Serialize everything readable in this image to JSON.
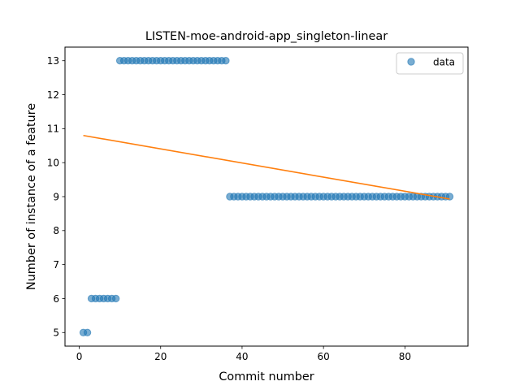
{
  "chart_data": {
    "type": "scatter",
    "title": "LISTEN-moe-android-app_singleton-linear",
    "xlabel": "Commit number",
    "ylabel": "Number of instance of a feature",
    "xlim": [
      -3.5,
      95.5
    ],
    "ylim": [
      4.6,
      13.4
    ],
    "x_ticks": [
      0,
      20,
      40,
      60,
      80
    ],
    "y_ticks": [
      5,
      6,
      7,
      8,
      9,
      10,
      11,
      12,
      13
    ],
    "legend": {
      "position": "top-right",
      "label": "data"
    },
    "series": [
      {
        "name": "data",
        "kind": "scatter",
        "color": "#1f77b4",
        "points": [
          [
            1,
            5
          ],
          [
            2,
            5
          ],
          [
            3,
            6
          ],
          [
            4,
            6
          ],
          [
            5,
            6
          ],
          [
            6,
            6
          ],
          [
            7,
            6
          ],
          [
            8,
            6
          ],
          [
            9,
            6
          ],
          [
            10,
            13
          ],
          [
            11,
            13
          ],
          [
            12,
            13
          ],
          [
            13,
            13
          ],
          [
            14,
            13
          ],
          [
            15,
            13
          ],
          [
            16,
            13
          ],
          [
            17,
            13
          ],
          [
            18,
            13
          ],
          [
            19,
            13
          ],
          [
            20,
            13
          ],
          [
            21,
            13
          ],
          [
            22,
            13
          ],
          [
            23,
            13
          ],
          [
            24,
            13
          ],
          [
            25,
            13
          ],
          [
            26,
            13
          ],
          [
            27,
            13
          ],
          [
            28,
            13
          ],
          [
            29,
            13
          ],
          [
            30,
            13
          ],
          [
            31,
            13
          ],
          [
            32,
            13
          ],
          [
            33,
            13
          ],
          [
            34,
            13
          ],
          [
            35,
            13
          ],
          [
            36,
            13
          ],
          [
            37,
            9
          ],
          [
            38,
            9
          ],
          [
            39,
            9
          ],
          [
            40,
            9
          ],
          [
            41,
            9
          ],
          [
            42,
            9
          ],
          [
            43,
            9
          ],
          [
            44,
            9
          ],
          [
            45,
            9
          ],
          [
            46,
            9
          ],
          [
            47,
            9
          ],
          [
            48,
            9
          ],
          [
            49,
            9
          ],
          [
            50,
            9
          ],
          [
            51,
            9
          ],
          [
            52,
            9
          ],
          [
            53,
            9
          ],
          [
            54,
            9
          ],
          [
            55,
            9
          ],
          [
            56,
            9
          ],
          [
            57,
            9
          ],
          [
            58,
            9
          ],
          [
            59,
            9
          ],
          [
            60,
            9
          ],
          [
            61,
            9
          ],
          [
            62,
            9
          ],
          [
            63,
            9
          ],
          [
            64,
            9
          ],
          [
            65,
            9
          ],
          [
            66,
            9
          ],
          [
            67,
            9
          ],
          [
            68,
            9
          ],
          [
            69,
            9
          ],
          [
            70,
            9
          ],
          [
            71,
            9
          ],
          [
            72,
            9
          ],
          [
            73,
            9
          ],
          [
            74,
            9
          ],
          [
            75,
            9
          ],
          [
            76,
            9
          ],
          [
            77,
            9
          ],
          [
            78,
            9
          ],
          [
            79,
            9
          ],
          [
            80,
            9
          ],
          [
            81,
            9
          ],
          [
            82,
            9
          ],
          [
            83,
            9
          ],
          [
            84,
            9
          ],
          [
            85,
            9
          ],
          [
            86,
            9
          ],
          [
            87,
            9
          ],
          [
            88,
            9
          ],
          [
            89,
            9
          ],
          [
            90,
            9
          ],
          [
            91,
            9
          ]
        ]
      },
      {
        "kind": "line",
        "color": "#ff7f0e",
        "points": [
          [
            1,
            10.8
          ],
          [
            91,
            8.93
          ]
        ]
      }
    ]
  }
}
